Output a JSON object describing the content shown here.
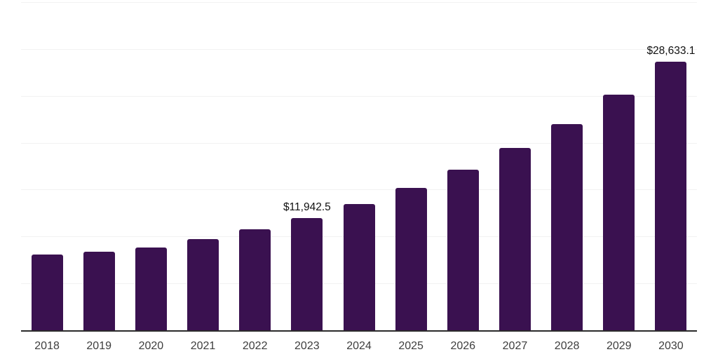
{
  "chart_data": {
    "type": "bar",
    "title": "",
    "xlabel": "",
    "ylabel": "",
    "categories": [
      "2018",
      "2019",
      "2020",
      "2021",
      "2022",
      "2023",
      "2024",
      "2025",
      "2026",
      "2027",
      "2028",
      "2029",
      "2030"
    ],
    "values": [
      8050,
      8350,
      8850,
      9750,
      10750,
      11942.5,
      13480,
      15160,
      17100,
      19440,
      22010,
      25130,
      28633.1
    ],
    "value_prefix": "$",
    "annotations": [
      {
        "category": "2023",
        "text": "$11,942.5"
      },
      {
        "category": "2030",
        "text": "$28,633.1"
      }
    ],
    "ylim": [
      0,
      35000
    ],
    "grid_step": 5000,
    "grid": "horizontal",
    "legend": "none",
    "colors": {
      "bar": "#3a1150",
      "gridline": "#f2f2f2",
      "axis": "#2b2b2b",
      "tick_label": "#3d3d3d",
      "data_label": "#111111",
      "background": "#ffffff"
    }
  }
}
